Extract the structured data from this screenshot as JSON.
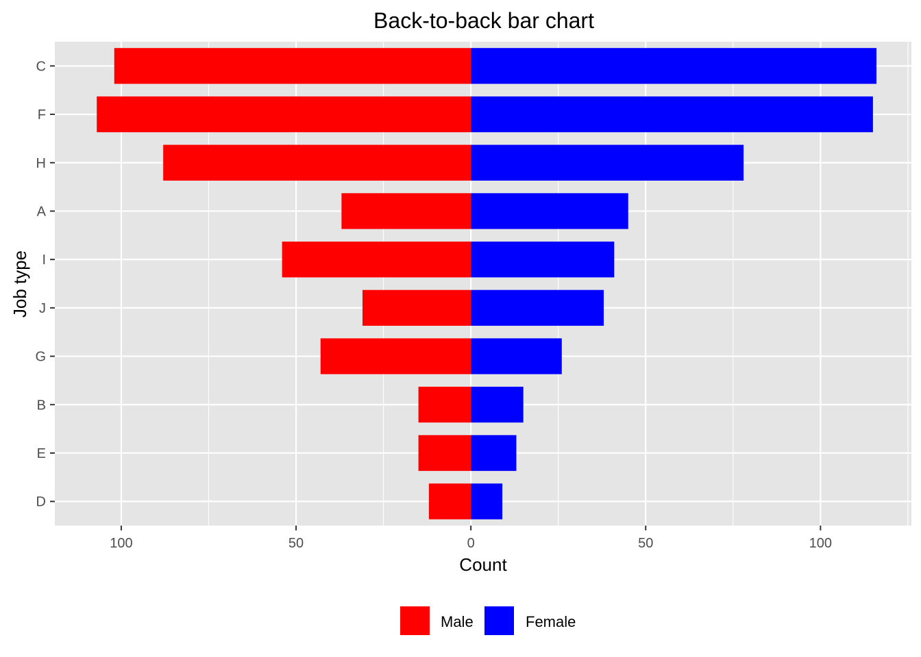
{
  "chart_data": {
    "type": "bar",
    "orientation": "horizontal",
    "layout": "back-to-back",
    "title": "Back-to-back bar chart",
    "xlabel": "Count",
    "ylabel": "Job type",
    "categories": [
      "C",
      "F",
      "H",
      "A",
      "I",
      "J",
      "G",
      "B",
      "E",
      "D"
    ],
    "series": [
      {
        "name": "Male",
        "color": "#ff0000",
        "side": "left",
        "values": [
          102,
          107,
          88,
          37,
          54,
          31,
          43,
          15,
          15,
          12
        ]
      },
      {
        "name": "Female",
        "color": "#0000ff",
        "side": "right",
        "values": [
          116,
          115,
          78,
          45,
          41,
          38,
          26,
          15,
          13,
          9
        ]
      }
    ],
    "xlim": [
      -119,
      126
    ],
    "x_ticks": [
      -100,
      -50,
      0,
      50,
      100
    ],
    "x_tick_labels": [
      "100",
      "50",
      "0",
      "50",
      "100"
    ],
    "grid": true,
    "legend_position": "bottom",
    "panel_background": "#e5e5e5",
    "grid_color": "#ffffff"
  }
}
